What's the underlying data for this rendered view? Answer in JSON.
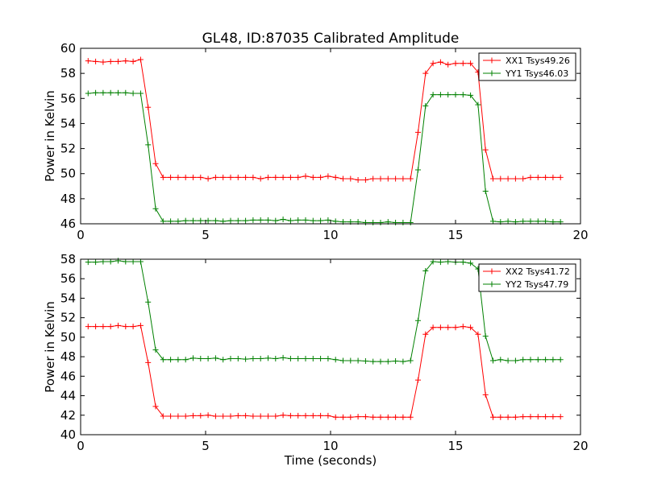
{
  "figure": {
    "title": "GL48, ID:87035 Calibrated Amplitude"
  },
  "chart_data": [
    {
      "type": "line",
      "title": "GL48, ID:87035 Calibrated Amplitude",
      "xlabel": "",
      "ylabel": "Power in Kelvin",
      "xlim": [
        0,
        20
      ],
      "ylim": [
        46,
        60
      ],
      "xticks": [
        0,
        5,
        10,
        15,
        20
      ],
      "yticks": [
        46,
        48,
        50,
        52,
        54,
        56,
        58,
        60
      ],
      "grid": false,
      "legend_position": "top-right",
      "x": [
        0.3,
        0.6,
        0.9,
        1.2,
        1.5,
        1.8,
        2.1,
        2.4,
        2.7,
        3.0,
        3.3,
        3.6,
        3.9,
        4.2,
        4.5,
        4.8,
        5.1,
        5.4,
        5.7,
        6.0,
        6.3,
        6.6,
        6.9,
        7.2,
        7.5,
        7.8,
        8.1,
        8.4,
        8.7,
        9.0,
        9.3,
        9.6,
        9.9,
        10.2,
        10.5,
        10.8,
        11.1,
        11.4,
        11.7,
        12.0,
        12.3,
        12.6,
        12.9,
        13.2,
        13.5,
        13.8,
        14.1,
        14.4,
        14.7,
        15.0,
        15.3,
        15.6,
        15.9,
        16.2,
        16.5,
        16.8,
        17.1,
        17.4,
        17.7,
        18.0,
        18.3,
        18.6,
        18.9,
        19.2
      ],
      "series": [
        {
          "name": "XX1 Tsys49.26",
          "color": "#ff0000",
          "values": [
            59.0,
            58.95,
            58.9,
            58.95,
            58.95,
            59.0,
            58.95,
            59.1,
            55.3,
            50.8,
            49.7,
            49.7,
            49.7,
            49.7,
            49.7,
            49.7,
            49.6,
            49.7,
            49.7,
            49.7,
            49.7,
            49.7,
            49.7,
            49.6,
            49.7,
            49.7,
            49.7,
            49.7,
            49.7,
            49.8,
            49.7,
            49.7,
            49.8,
            49.7,
            49.6,
            49.6,
            49.5,
            49.5,
            49.6,
            49.6,
            49.6,
            49.6,
            49.6,
            49.6,
            53.3,
            58.0,
            58.8,
            58.9,
            58.7,
            58.8,
            58.8,
            58.8,
            58.1,
            51.9,
            49.6,
            49.6,
            49.6,
            49.6,
            49.6,
            49.7,
            49.7,
            49.7,
            49.7,
            49.7
          ]
        },
        {
          "name": "YY1 Tsys46.03",
          "color": "#008000",
          "values": [
            56.4,
            56.45,
            56.45,
            56.45,
            56.45,
            56.45,
            56.4,
            56.4,
            52.3,
            47.2,
            46.2,
            46.2,
            46.2,
            46.25,
            46.25,
            46.25,
            46.25,
            46.25,
            46.2,
            46.25,
            46.25,
            46.25,
            46.3,
            46.3,
            46.3,
            46.25,
            46.35,
            46.25,
            46.3,
            46.3,
            46.25,
            46.25,
            46.3,
            46.2,
            46.15,
            46.15,
            46.15,
            46.1,
            46.1,
            46.1,
            46.15,
            46.1,
            46.1,
            46.1,
            50.3,
            55.4,
            56.3,
            56.3,
            56.3,
            56.3,
            56.3,
            56.25,
            55.5,
            48.6,
            46.2,
            46.15,
            46.2,
            46.15,
            46.2,
            46.2,
            46.2,
            46.2,
            46.15,
            46.15
          ]
        }
      ]
    },
    {
      "type": "line",
      "title": "",
      "xlabel": "Time (seconds)",
      "ylabel": "Power in Kelvin",
      "xlim": [
        0,
        20
      ],
      "ylim": [
        40,
        58
      ],
      "xticks": [
        0,
        5,
        10,
        15,
        20
      ],
      "yticks": [
        40,
        42,
        44,
        46,
        48,
        50,
        52,
        54,
        56,
        58
      ],
      "grid": false,
      "legend_position": "top-right",
      "x": [
        0.3,
        0.6,
        0.9,
        1.2,
        1.5,
        1.8,
        2.1,
        2.4,
        2.7,
        3.0,
        3.3,
        3.6,
        3.9,
        4.2,
        4.5,
        4.8,
        5.1,
        5.4,
        5.7,
        6.0,
        6.3,
        6.6,
        6.9,
        7.2,
        7.5,
        7.8,
        8.1,
        8.4,
        8.7,
        9.0,
        9.3,
        9.6,
        9.9,
        10.2,
        10.5,
        10.8,
        11.1,
        11.4,
        11.7,
        12.0,
        12.3,
        12.6,
        12.9,
        13.2,
        13.5,
        13.8,
        14.1,
        14.4,
        14.7,
        15.0,
        15.3,
        15.6,
        15.9,
        16.2,
        16.5,
        16.8,
        17.1,
        17.4,
        17.7,
        18.0,
        18.3,
        18.6,
        18.9,
        19.2
      ],
      "series": [
        {
          "name": "XX2 Tsys41.72",
          "color": "#ff0000",
          "values": [
            51.1,
            51.1,
            51.1,
            51.1,
            51.2,
            51.1,
            51.1,
            51.2,
            47.4,
            42.9,
            41.9,
            41.9,
            41.9,
            41.9,
            41.95,
            41.95,
            42.0,
            41.9,
            41.9,
            41.9,
            41.95,
            41.95,
            41.9,
            41.9,
            41.9,
            41.9,
            42.0,
            41.95,
            41.95,
            41.95,
            41.95,
            41.95,
            41.95,
            41.8,
            41.8,
            41.8,
            41.85,
            41.85,
            41.8,
            41.8,
            41.8,
            41.8,
            41.8,
            41.8,
            45.6,
            50.3,
            51.0,
            51.0,
            51.0,
            51.0,
            51.1,
            51.0,
            50.3,
            44.1,
            41.8,
            41.8,
            41.8,
            41.8,
            41.85,
            41.85,
            41.85,
            41.85,
            41.85,
            41.85
          ]
        },
        {
          "name": "YY2 Tsys47.79",
          "color": "#008000",
          "values": [
            57.7,
            57.7,
            57.75,
            57.75,
            57.85,
            57.75,
            57.75,
            57.75,
            53.6,
            48.7,
            47.7,
            47.7,
            47.7,
            47.7,
            47.85,
            47.8,
            47.8,
            47.85,
            47.7,
            47.8,
            47.8,
            47.75,
            47.8,
            47.8,
            47.85,
            47.8,
            47.9,
            47.8,
            47.8,
            47.8,
            47.8,
            47.8,
            47.8,
            47.7,
            47.6,
            47.6,
            47.6,
            47.55,
            47.5,
            47.5,
            47.5,
            47.55,
            47.5,
            47.6,
            51.7,
            56.8,
            57.75,
            57.7,
            57.75,
            57.7,
            57.7,
            57.6,
            57.0,
            50.1,
            47.6,
            47.7,
            47.6,
            47.6,
            47.7,
            47.7,
            47.7,
            47.7,
            47.7,
            47.7
          ]
        }
      ]
    }
  ]
}
